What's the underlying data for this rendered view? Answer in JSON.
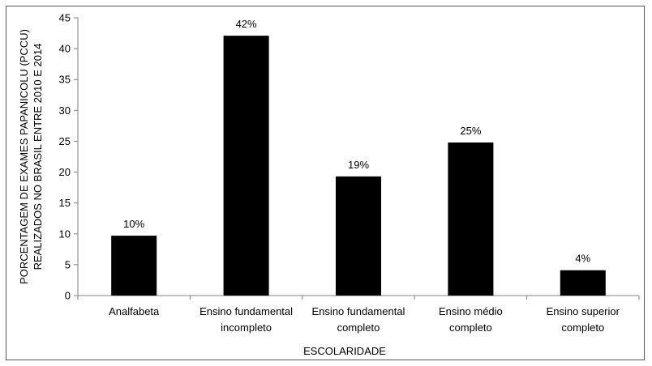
{
  "chart_data": {
    "type": "bar",
    "title": "",
    "xlabel": "ESCOLARIDADE",
    "ylabel_lines": [
      "PORCENTAGEM DE EXAMES PAPANICOLU (PCCU)",
      "REALIZADOS NO BRASIL ENTRE 2010 E 2014"
    ],
    "categories": [
      [
        "Analfabeta"
      ],
      [
        "Ensino fundamental",
        "incompleto"
      ],
      [
        "Ensino fundamental",
        "completo"
      ],
      [
        "Ensino médio",
        "completo"
      ],
      [
        "Ensino superior",
        "completo"
      ]
    ],
    "values": [
      9.7,
      42.1,
      19.3,
      24.8,
      4.1
    ],
    "data_labels": [
      "10%",
      "42%",
      "19%",
      "25%",
      "4%"
    ],
    "ylim": [
      0,
      45
    ],
    "yticks": [
      0,
      5,
      10,
      15,
      20,
      25,
      30,
      35,
      40,
      45
    ],
    "grid": false,
    "legend": "none",
    "bar_color": "#000000",
    "axis_color": "#808080"
  }
}
